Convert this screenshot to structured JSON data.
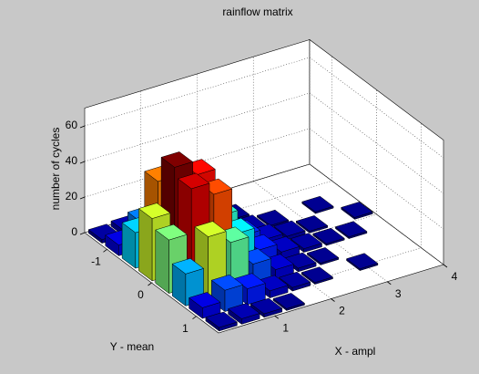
{
  "chart_data": {
    "type": "bar3d",
    "title": "rainflow matrix",
    "x_label": "X - ampl",
    "y_label": "Y - mean",
    "z_label": "number of cycles",
    "colormap": "jet",
    "grid": true,
    "xbins": [
      0,
      0.4,
      0.8,
      1.2,
      1.6,
      2,
      2.4,
      2.8,
      3.2,
      3.6,
      4
    ],
    "ybins": [
      -1.5,
      -1.125,
      -0.75,
      -0.375,
      0,
      0.375,
      0.75,
      1.125,
      1.5
    ],
    "values": [
      [
        2,
        3,
        2,
        1,
        null,
        null,
        null,
        null,
        null,
        null
      ],
      [
        6,
        15,
        8,
        4,
        2,
        1,
        null,
        null,
        null,
        null
      ],
      [
        20,
        45,
        30,
        12,
        5,
        2,
        1,
        null,
        1,
        null
      ],
      [
        35,
        60,
        52,
        25,
        10,
        4,
        2,
        1,
        null,
        1
      ],
      [
        30,
        55,
        48,
        22,
        9,
        4,
        2,
        1,
        1,
        null
      ],
      [
        18,
        35,
        28,
        12,
        5,
        2,
        1,
        null,
        null,
        null
      ],
      [
        6,
        12,
        9,
        4,
        2,
        1,
        null,
        1,
        null,
        null
      ],
      [
        2,
        3,
        2,
        1,
        null,
        null,
        null,
        null,
        null,
        null
      ]
    ],
    "xlim": [
      0,
      4
    ],
    "xticks": [
      1,
      2,
      3,
      4
    ],
    "ylim": [
      -1.5,
      1.5
    ],
    "yticks": [
      -1,
      0,
      1
    ],
    "zlim": [
      0,
      70
    ],
    "zticks": [
      0,
      20,
      40,
      60
    ]
  }
}
